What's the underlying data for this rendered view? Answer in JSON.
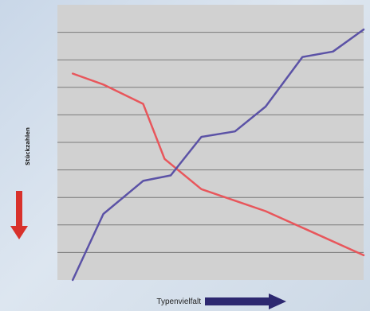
{
  "chart_data": {
    "type": "line",
    "ylabel": "Stückzahlen",
    "xlabel": "Typenvielfalt",
    "xlim": [
      0,
      10
    ],
    "ylim": [
      0,
      10
    ],
    "grid": true,
    "y_gridlines": [
      1,
      2,
      3,
      4,
      5,
      6,
      7,
      8,
      9
    ],
    "x_ticks": [],
    "y_ticks": [],
    "series": [
      {
        "color": "#e8565b",
        "points": [
          [
            0.5,
            7.5
          ],
          [
            1.5,
            7.1
          ],
          [
            2.8,
            6.4
          ],
          [
            3.5,
            4.4
          ],
          [
            4.7,
            3.3
          ],
          [
            6.8,
            2.5
          ],
          [
            8.2,
            1.8
          ],
          [
            10.0,
            0.9
          ]
        ]
      },
      {
        "color": "#5b52a6",
        "points": [
          [
            0.5,
            0.0
          ],
          [
            1.5,
            2.4
          ],
          [
            2.8,
            3.6
          ],
          [
            3.7,
            3.8
          ],
          [
            4.7,
            5.2
          ],
          [
            5.8,
            5.4
          ],
          [
            6.8,
            6.3
          ],
          [
            8.0,
            8.1
          ],
          [
            9.0,
            8.3
          ],
          [
            10.0,
            9.1
          ]
        ]
      }
    ],
    "indicators": {
      "y_arrow_color": "#d8312b",
      "x_arrow_color": "#2d2870"
    }
  }
}
